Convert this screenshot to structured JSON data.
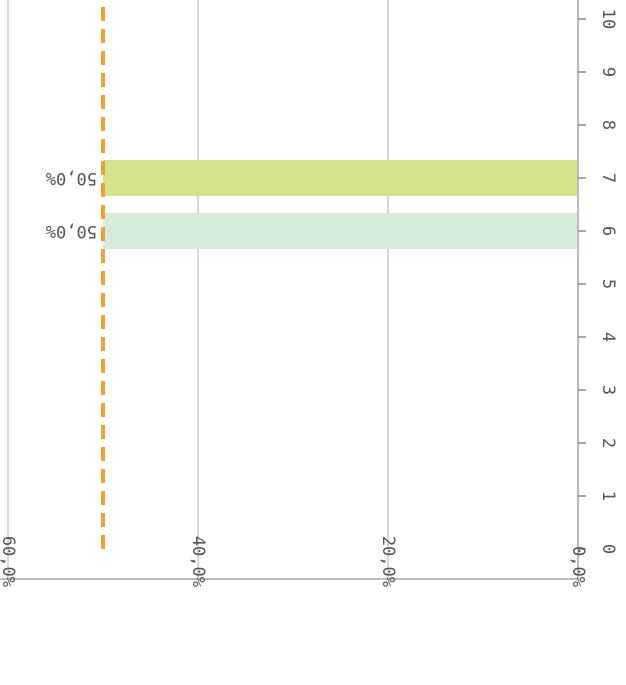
{
  "chart_data": {
    "type": "bar",
    "orientation": "horizontal",
    "display": "rotated 180 degrees",
    "categories": [
      "0",
      "1",
      "2",
      "3",
      "4",
      "5",
      "6",
      "7",
      "8",
      "9",
      "10"
    ],
    "values": [
      null,
      null,
      null,
      null,
      null,
      null,
      50.0,
      50.0,
      null,
      null,
      null
    ],
    "bar_colors": {
      "6": "#d4ecd9",
      "7": "#d7e38a"
    },
    "data_labels": {
      "6": "50,0%",
      "7": "50,0%"
    },
    "value_axis": {
      "range": [
        0,
        60
      ],
      "ticks": [
        0,
        20,
        40,
        60
      ],
      "tick_labels": [
        "0,0%",
        "20,0%",
        "40,0%",
        "60,0%"
      ]
    },
    "reference_line": {
      "value": 50,
      "style": "dashed",
      "color": "#e8a33a"
    },
    "grid": true,
    "gridline_color": "#cccccc",
    "axis_color": "#bbbbbb"
  }
}
